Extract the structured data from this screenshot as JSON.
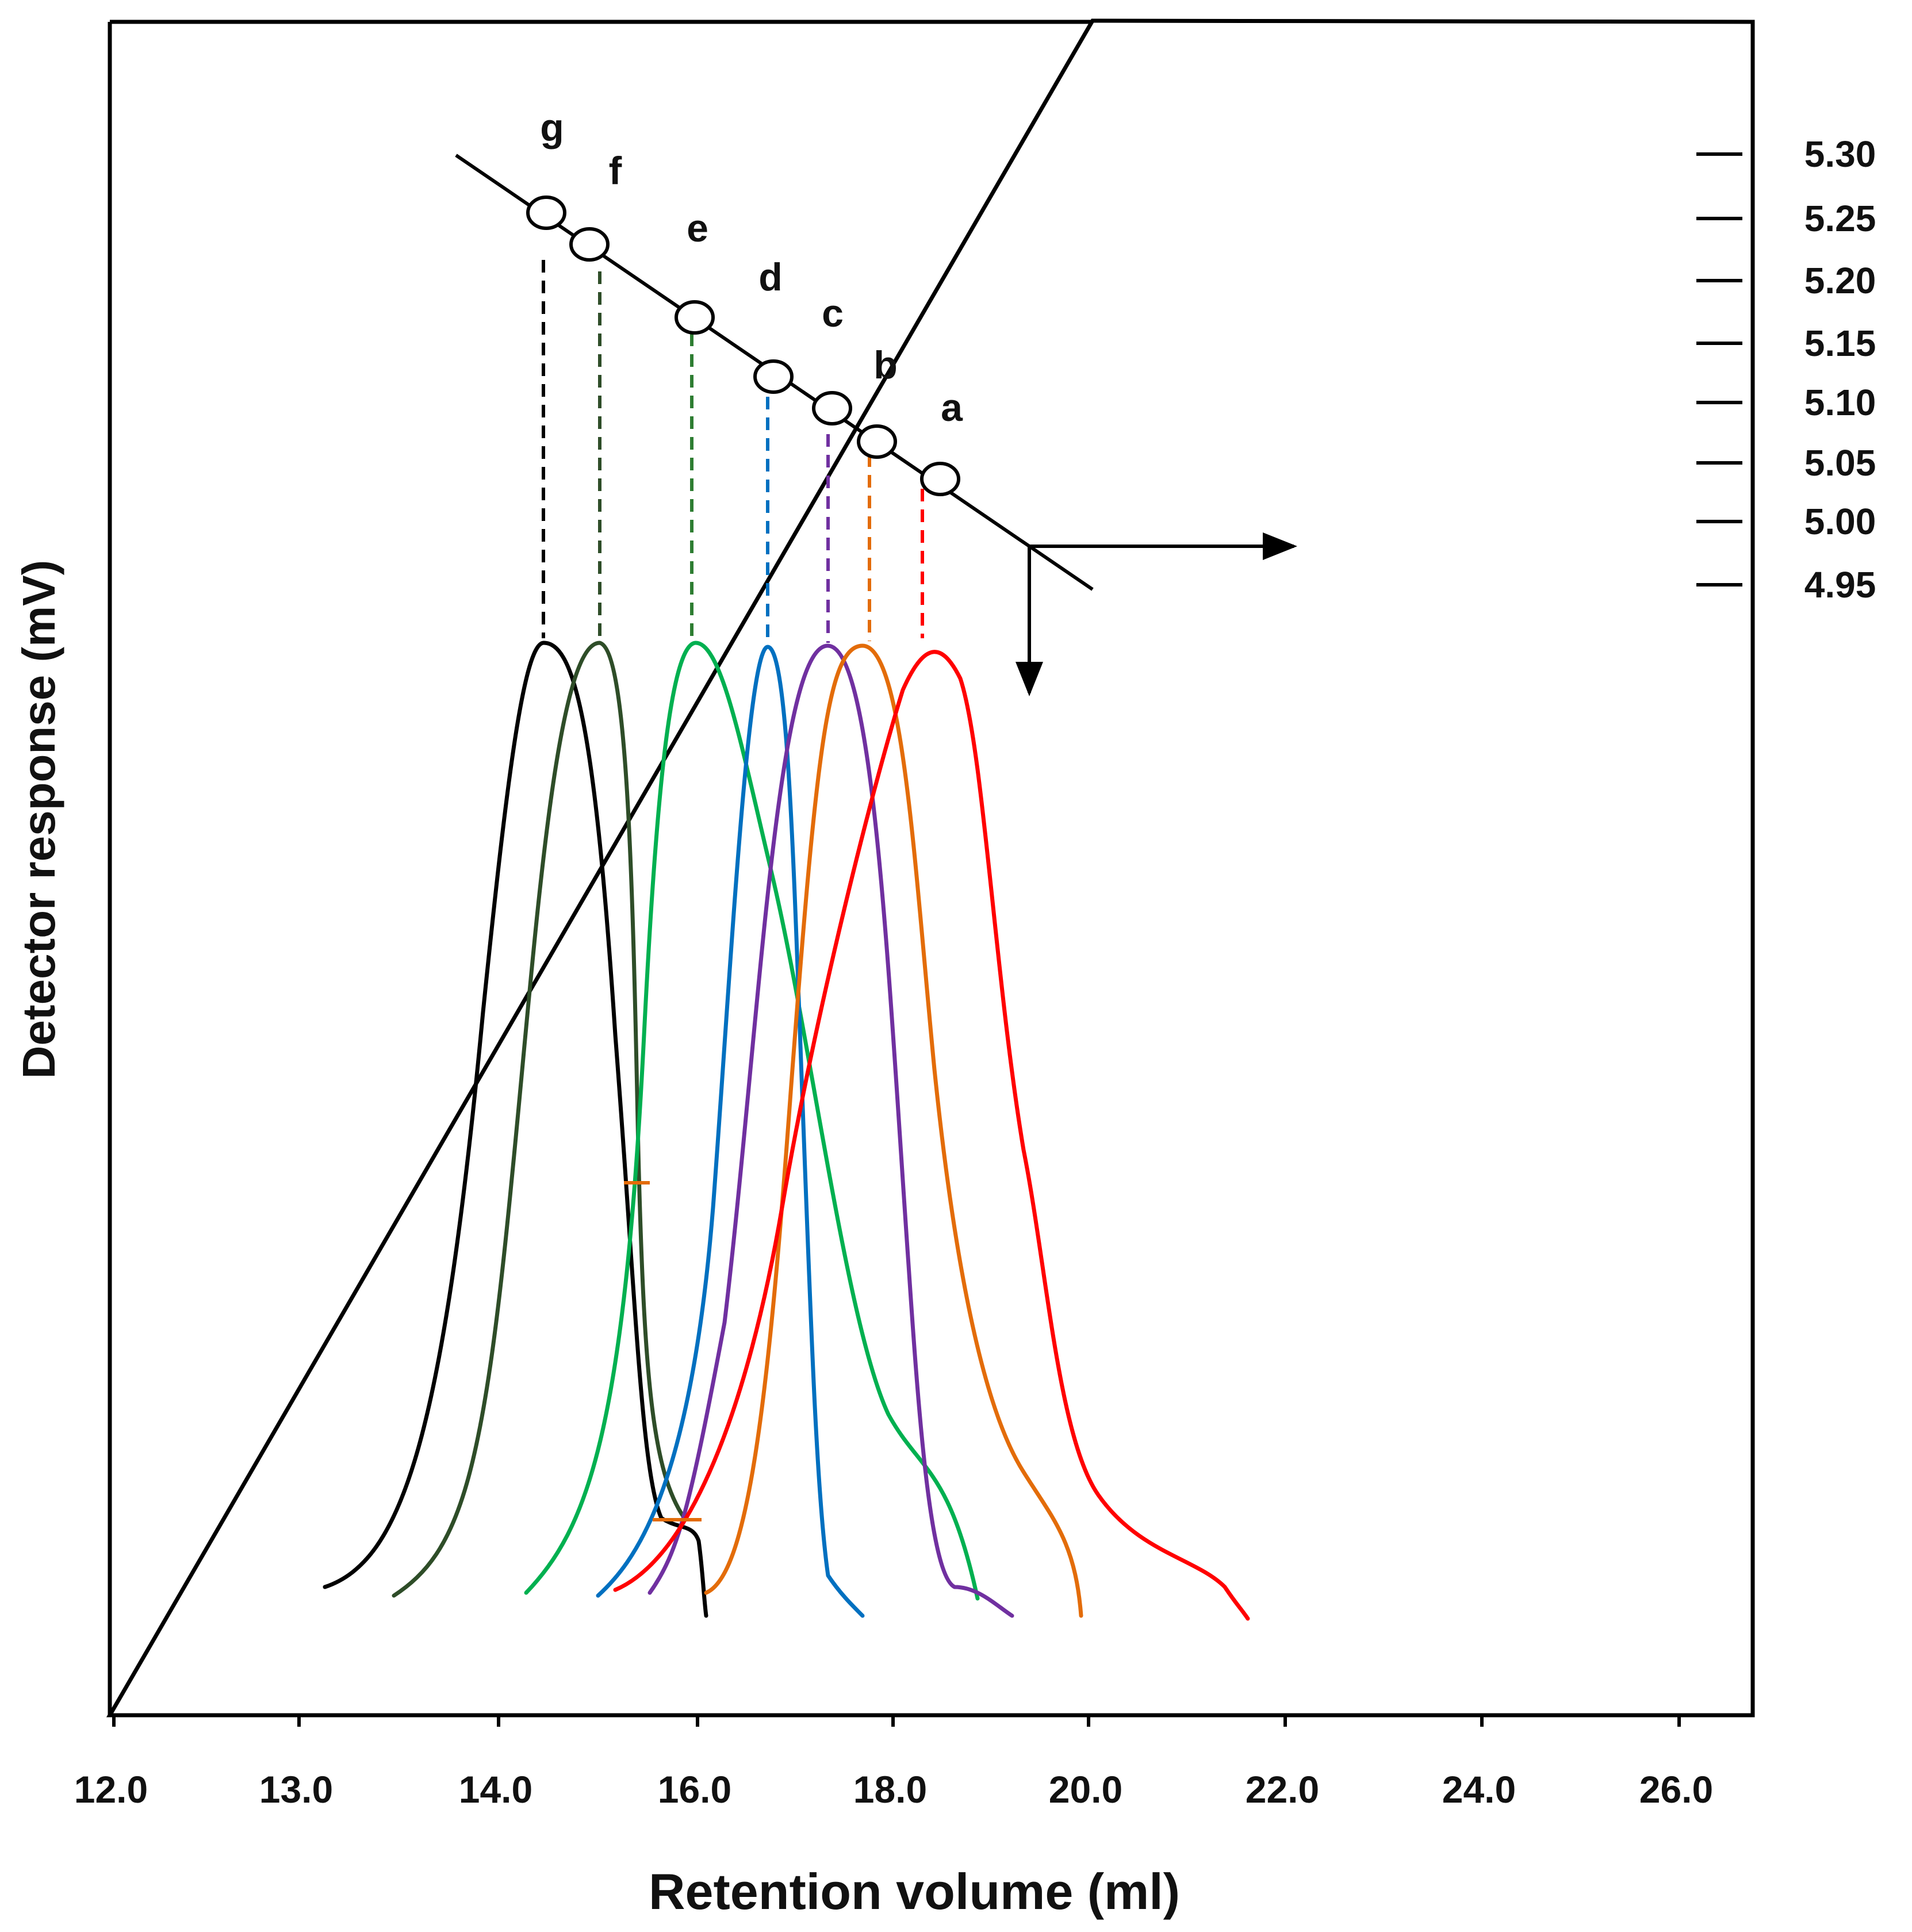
{
  "chart_data": {
    "type": "line",
    "title": "",
    "xlabel": "Retention volume (ml)",
    "ylabel": "Detector response (mV)",
    "x_ticks": [
      "12.0",
      "13.0",
      "14.0",
      "16.0",
      "18.0",
      "20.0",
      "22.0",
      "24.0",
      "26.0"
    ],
    "right_axis_ticks": [
      "5.30",
      "5.25",
      "5.20",
      "5.15",
      "5.10",
      "5.05",
      "5.00",
      "4.95"
    ],
    "calibration_points": [
      {
        "label": "g",
        "retention_ml": 14.5,
        "log_value": 5.25
      },
      {
        "label": "f",
        "retention_ml": 14.95,
        "log_value": 5.225
      },
      {
        "label": "e",
        "retention_ml": 15.95,
        "log_value": 5.165
      },
      {
        "label": "d",
        "retention_ml": 16.75,
        "log_value": 5.12
      },
      {
        "label": "c",
        "retention_ml": 17.35,
        "log_value": 5.095
      },
      {
        "label": "b",
        "retention_ml": 17.8,
        "log_value": 5.065
      },
      {
        "label": "a",
        "retention_ml": 18.45,
        "log_value": 5.035
      }
    ],
    "series": [
      {
        "name": "g",
        "color": "#000000",
        "peak_ml": 14.5
      },
      {
        "name": "f",
        "color": "#2e4d28",
        "peak_ml": 15.0
      },
      {
        "name": "e",
        "color": "#00b050",
        "peak_ml": 15.95
      },
      {
        "name": "d",
        "color": "#0070c0",
        "peak_ml": 16.7
      },
      {
        "name": "c",
        "color": "#7030a0",
        "peak_ml": 17.3
      },
      {
        "name": "b",
        "color": "#e36c09",
        "peak_ml": 17.7
      },
      {
        "name": "a",
        "color": "#ff0000",
        "peak_ml": 18.25
      }
    ]
  }
}
